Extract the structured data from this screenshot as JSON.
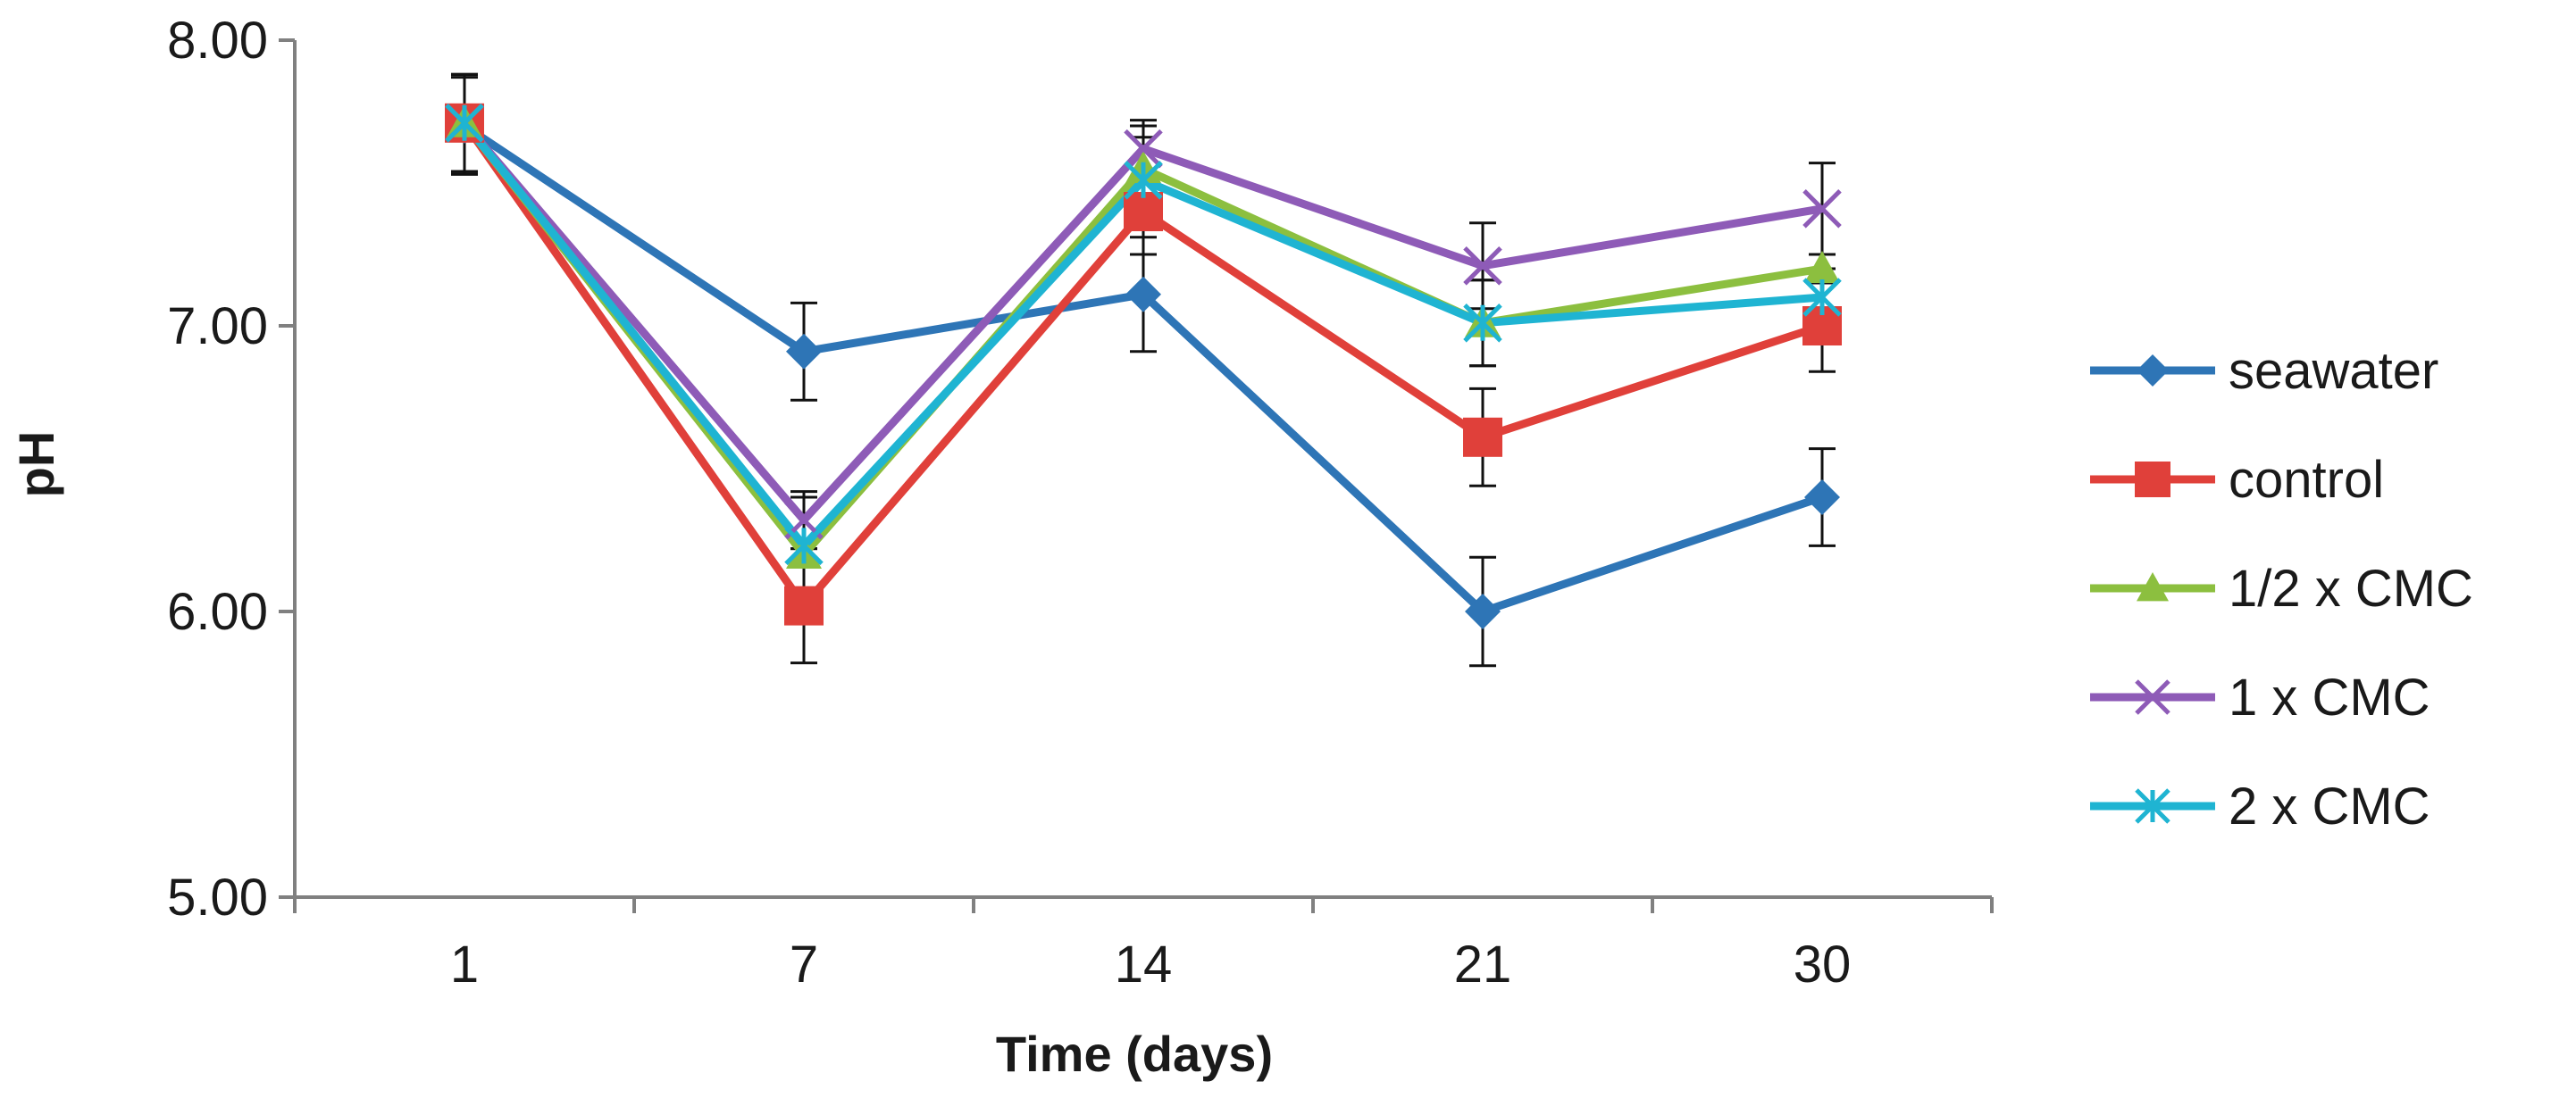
{
  "chart_data": {
    "type": "line",
    "title": "",
    "xlabel": "Time (days)",
    "ylabel": "pH",
    "categories": [
      "1",
      "7",
      "14",
      "21",
      "30"
    ],
    "ylim": [
      5.0,
      8.0
    ],
    "y_ticks": [
      "5.00",
      "6.00",
      "7.00",
      "8.00"
    ],
    "grid": false,
    "legend_position": "right",
    "series": [
      {
        "name": "seawater",
        "color": "#2E75B6",
        "marker": "diamond",
        "values": [
          7.7,
          6.91,
          7.11,
          6.0,
          6.4
        ],
        "errors": [
          0.17,
          0.17,
          0.2,
          0.19,
          0.17
        ]
      },
      {
        "name": "control",
        "color": "#E0403A",
        "marker": "square",
        "values": [
          7.71,
          6.02,
          7.4,
          6.61,
          7.0
        ],
        "errors": [
          0.17,
          0.2,
          0.15,
          0.17,
          0.16
        ]
      },
      {
        "name": "1/2 x CMC",
        "color": "#8CBF3F",
        "marker": "triangle",
        "values": [
          7.71,
          6.2,
          7.55,
          7.01,
          7.2
        ],
        "errors": [
          0.17,
          0.2,
          0.15,
          0.15,
          0.05
        ]
      },
      {
        "name": "1 x CMC",
        "color": "#8E5BB7",
        "marker": "x",
        "values": [
          7.71,
          6.32,
          7.62,
          7.21,
          7.41
        ],
        "errors": [
          0.17,
          0.1,
          0.1,
          0.15,
          0.16
        ]
      },
      {
        "name": "2 x CMC",
        "color": "#1FB4D2",
        "marker": "star",
        "values": [
          7.71,
          6.23,
          7.51,
          7.01,
          7.1
        ],
        "errors": [
          0.17,
          0.17,
          0.15,
          0.15,
          0.1
        ]
      }
    ]
  }
}
